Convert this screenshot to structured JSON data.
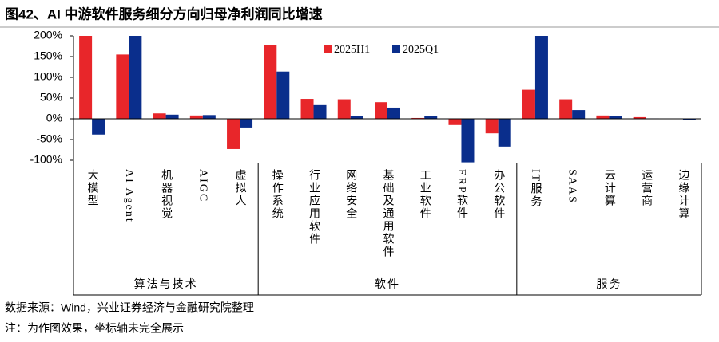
{
  "chart_data": {
    "type": "bar",
    "title": "图42、AI 中游软件服务细分方向归母净利润同比增速",
    "categories": [
      "大模型",
      "AI Agent",
      "机器视觉",
      "AIGC",
      "虚拟人",
      "操作系统",
      "行业应用软件",
      "网络安全",
      "基础及通用软件",
      "工业软件",
      "ERP软件",
      "办公软件",
      "IT服务",
      "SAAS",
      "云计算",
      "运营商",
      "边缘计算"
    ],
    "groups": [
      "算法与技术",
      "软件",
      "服务"
    ],
    "series": [
      {
        "name": "2025H1",
        "color": "#e8262a",
        "values": [
          200,
          155,
          13,
          8,
          -73,
          177,
          48,
          47,
          40,
          2,
          -15,
          -35,
          70,
          47,
          8,
          4,
          0
        ]
      },
      {
        "name": "2025Q1",
        "color": "#0a2e8c",
        "values": [
          -38,
          200,
          10,
          9,
          -21,
          114,
          33,
          6,
          27,
          6,
          -105,
          -67,
          200,
          21,
          6,
          1,
          -2
        ]
      }
    ],
    "ylim": [
      -100,
      200
    ],
    "yticks": [
      {
        "value": -100,
        "label": "-100%"
      },
      {
        "value": -50,
        "label": "-50%"
      },
      {
        "value": 0,
        "label": "0%"
      },
      {
        "value": 50,
        "label": "50%"
      },
      {
        "value": 100,
        "label": "100%"
      },
      {
        "value": 150,
        "label": "150%"
      },
      {
        "value": 200,
        "label": "200%"
      }
    ],
    "source": "数据来源：Wind，兴业证券经济与金融研究院整理",
    "note": "注：为作图效果，坐标轴未完全展示"
  }
}
